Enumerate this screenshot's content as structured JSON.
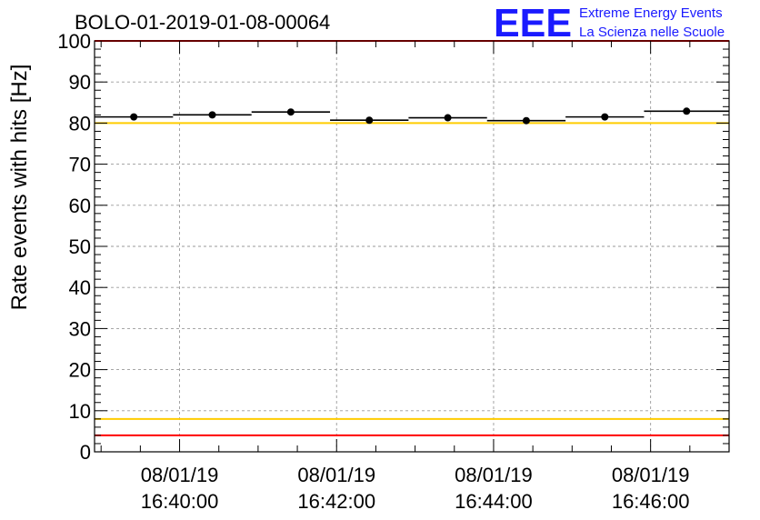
{
  "header": {
    "run_id": "BOLO-01-2019-01-08-00064",
    "logo": {
      "letters": "EEE",
      "line1": "Extreme Energy Events",
      "line2": "La Scienza nelle Scuole",
      "color": "#1a1aff"
    }
  },
  "chart_data": {
    "type": "scatter",
    "ylabel": "Rate events with hits [Hz]",
    "ylim": [
      0,
      100
    ],
    "y_ticks": [
      "0",
      "10",
      "20",
      "30",
      "40",
      "50",
      "60",
      "70",
      "80",
      "90",
      "100"
    ],
    "x_ticks": [
      {
        "date": "08/01/19",
        "time": "16:40:00"
      },
      {
        "date": "08/01/19",
        "time": "16:42:00"
      },
      {
        "date": "08/01/19",
        "time": "16:44:00"
      },
      {
        "date": "08/01/19",
        "time": "16:46:00"
      }
    ],
    "xlim": [
      "2019-01-08 16:38:55",
      "2019-01-08 16:47:00"
    ],
    "grid": true,
    "series": [
      {
        "points": [
          {
            "start": "2019-01-08 16:38:55",
            "end": "2019-01-08 16:39:55",
            "y": 81.5,
            "err": 0.6
          },
          {
            "start": "2019-01-08 16:39:55",
            "end": "2019-01-08 16:40:55",
            "y": 82.0,
            "err": 0.6
          },
          {
            "start": "2019-01-08 16:40:55",
            "end": "2019-01-08 16:41:55",
            "y": 82.7,
            "err": 0.6
          },
          {
            "start": "2019-01-08 16:41:55",
            "end": "2019-01-08 16:42:55",
            "y": 80.7,
            "err": 0.6
          },
          {
            "start": "2019-01-08 16:42:55",
            "end": "2019-01-08 16:43:55",
            "y": 81.3,
            "err": 0.6
          },
          {
            "start": "2019-01-08 16:43:55",
            "end": "2019-01-08 16:44:55",
            "y": 80.6,
            "err": 0.6
          },
          {
            "start": "2019-01-08 16:44:55",
            "end": "2019-01-08 16:45:55",
            "y": 81.5,
            "err": 0.6
          },
          {
            "start": "2019-01-08 16:45:55",
            "end": "2019-01-08 16:47:00",
            "y": 82.9,
            "err": 0.6
          }
        ],
        "color": "#000000"
      }
    ],
    "reference_lines": [
      {
        "y": 100,
        "color": "#ff0000"
      },
      {
        "y": 80,
        "color": "#ffcc00"
      },
      {
        "y": 8,
        "color": "#ffcc00"
      },
      {
        "y": 4,
        "color": "#ff0000"
      }
    ]
  }
}
